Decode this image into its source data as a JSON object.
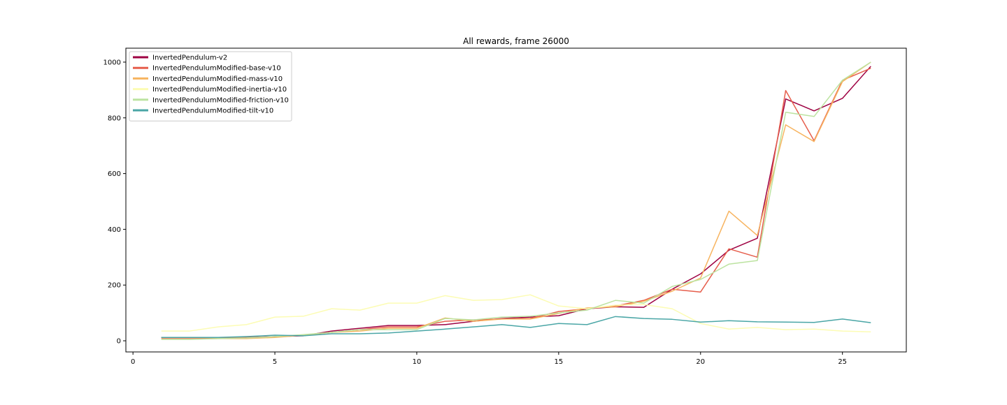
{
  "chart_data": {
    "type": "line",
    "title": "All rewards, frame 26000",
    "xlabel": "",
    "ylabel": "",
    "xlim": [
      -0.25,
      27.25
    ],
    "ylim": [
      -40,
      1050
    ],
    "xticks": [
      0,
      5,
      10,
      15,
      20,
      25
    ],
    "yticks": [
      0,
      200,
      400,
      600,
      800,
      1000
    ],
    "grid": false,
    "legend_position": "top-left",
    "x": [
      1,
      2,
      3,
      4,
      5,
      6,
      7,
      8,
      9,
      10,
      11,
      12,
      13,
      14,
      15,
      16,
      17,
      18,
      19,
      20,
      21,
      22,
      23,
      24,
      25,
      26
    ],
    "series": [
      {
        "name": "InvertedPendulum-v2",
        "color": "#9e0142",
        "values": [
          12,
          11,
          10,
          12,
          15,
          18,
          35,
          45,
          55,
          55,
          58,
          70,
          80,
          85,
          90,
          115,
          122,
          120,
          185,
          240,
          325,
          368,
          868,
          825,
          870,
          985
        ]
      },
      {
        "name": "InvertedPendulumModified-base-v10",
        "color": "#e65e4c",
        "values": [
          10,
          10,
          10,
          12,
          14,
          20,
          30,
          40,
          50,
          50,
          70,
          75,
          78,
          80,
          105,
          115,
          125,
          145,
          185,
          175,
          330,
          300,
          898,
          718,
          935,
          978
        ]
      },
      {
        "name": "InvertedPendulumModified-mass-v10",
        "color": "#f7b460",
        "values": [
          6,
          6,
          8,
          8,
          12,
          20,
          30,
          35,
          45,
          45,
          82,
          70,
          78,
          78,
          98,
          118,
          122,
          142,
          178,
          225,
          465,
          378,
          775,
          715,
          930,
          1000
        ]
      },
      {
        "name": "InvertedPendulumModified-inertia-v10",
        "color": "#fcfcb4",
        "values": [
          35,
          35,
          50,
          58,
          85,
          88,
          115,
          110,
          135,
          135,
          162,
          145,
          148,
          165,
          125,
          115,
          128,
          130,
          115,
          62,
          42,
          48,
          40,
          42,
          35,
          32
        ]
      },
      {
        "name": "InvertedPendulumModified-friction-v10",
        "color": "#bce3a0",
        "values": [
          5,
          5,
          8,
          10,
          15,
          22,
          30,
          40,
          40,
          40,
          80,
          75,
          85,
          88,
          100,
          110,
          145,
          135,
          195,
          220,
          275,
          288,
          820,
          805,
          935,
          1000
        ]
      },
      {
        "name": "InvertedPendulumModified-tilt-v10",
        "color": "#4aa6a6",
        "values": [
          12,
          12,
          12,
          15,
          20,
          18,
          25,
          25,
          28,
          35,
          42,
          50,
          58,
          48,
          62,
          58,
          87,
          80,
          77,
          67,
          72,
          68,
          67,
          66,
          78,
          65
        ]
      }
    ]
  }
}
